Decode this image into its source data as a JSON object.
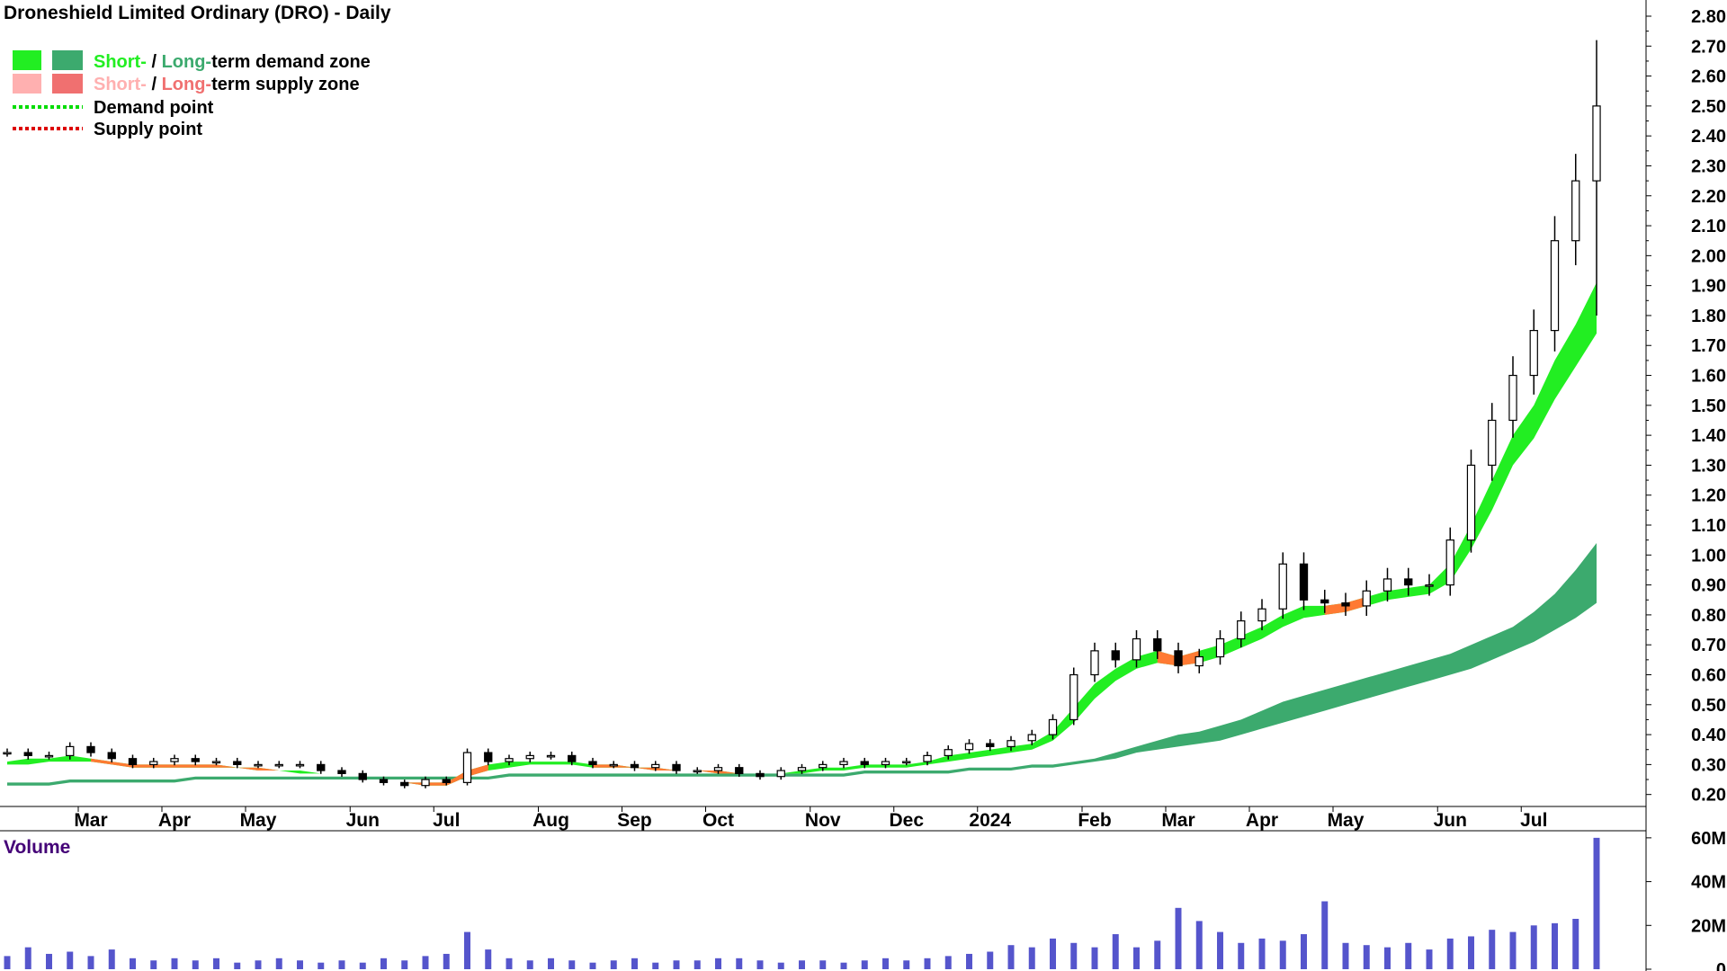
{
  "title": "Droneshield Limited Ordinary (DRO) - Daily",
  "legend": {
    "demand_zone": {
      "short": "Short-",
      "sep": " / ",
      "long": "Long-",
      "rest": "term demand zone"
    },
    "supply_zone": {
      "short": "Short-",
      "sep": " / ",
      "long": "Long-",
      "rest": "term supply zone"
    },
    "demand_point": "Demand point",
    "supply_point": "Supply point"
  },
  "colors": {
    "short_demand": "#22ee22",
    "long_demand": "#3caa6e",
    "short_supply": "#ffb0b0",
    "long_supply": "#f07070",
    "orange_band": "#ff7a33",
    "demand_point": "#00dd00",
    "supply_point": "#dd0000",
    "volume_bar": "#5555cc",
    "volume_label": "#440077",
    "candle": "#000000"
  },
  "volume_label": "Volume",
  "chart_data": [
    {
      "type": "candlestick",
      "title": "Droneshield Limited Ordinary (DRO) - Daily",
      "y_axis": {
        "ticks": [
          "0.20",
          "0.30",
          "0.40",
          "0.50",
          "0.60",
          "0.70",
          "0.80",
          "0.90",
          "1.00",
          "1.10",
          "1.20",
          "1.30",
          "1.40",
          "1.50",
          "1.60",
          "1.70",
          "1.80",
          "1.90",
          "2.00",
          "2.10",
          "2.20",
          "2.30",
          "2.40",
          "2.50",
          "2.60",
          "2.70",
          "2.80"
        ],
        "range": [
          0.16,
          2.83
        ],
        "side": "right"
      },
      "x_axis": {
        "labels": [
          "Mar",
          "Apr",
          "May",
          "Jun",
          "Jul",
          "Aug",
          "Sep",
          "Oct",
          "Nov",
          "Dec",
          "2024",
          "Feb",
          "Mar",
          "Apr",
          "May",
          "Jun",
          "Jul"
        ],
        "label_week_index": [
          4,
          8,
          12,
          17,
          21,
          26,
          30,
          34,
          39,
          43,
          47,
          52,
          56,
          60,
          64,
          69,
          73
        ]
      },
      "weekly_close": [
        0.34,
        0.33,
        0.33,
        0.36,
        0.34,
        0.32,
        0.3,
        0.31,
        0.32,
        0.31,
        0.31,
        0.3,
        0.3,
        0.3,
        0.3,
        0.28,
        0.27,
        0.25,
        0.24,
        0.23,
        0.25,
        0.24,
        0.34,
        0.31,
        0.32,
        0.33,
        0.33,
        0.31,
        0.3,
        0.3,
        0.29,
        0.3,
        0.28,
        0.28,
        0.29,
        0.27,
        0.26,
        0.28,
        0.29,
        0.3,
        0.31,
        0.3,
        0.31,
        0.31,
        0.33,
        0.35,
        0.37,
        0.36,
        0.38,
        0.4,
        0.45,
        0.6,
        0.68,
        0.65,
        0.72,
        0.68,
        0.63,
        0.66,
        0.72,
        0.78,
        0.82,
        0.97,
        0.85,
        0.84,
        0.83,
        0.88,
        0.92,
        0.9,
        0.9,
        1.05,
        1.3,
        1.45,
        1.6,
        1.75,
        2.05,
        2.25,
        2.5
      ],
      "last_week_high": 2.72,
      "last_week_low": 1.8,
      "short_demand_zone": {
        "upper": [
          0.31,
          0.32,
          0.32,
          0.33,
          0.32,
          0.31,
          0.3,
          0.3,
          0.3,
          0.3,
          0.3,
          0.29,
          0.29,
          0.28,
          0.28,
          0.27,
          0.26,
          0.25,
          0.24,
          0.24,
          0.24,
          0.24,
          0.28,
          0.3,
          0.31,
          0.31,
          0.31,
          0.31,
          0.3,
          0.3,
          0.29,
          0.29,
          0.28,
          0.28,
          0.28,
          0.27,
          0.27,
          0.27,
          0.28,
          0.29,
          0.29,
          0.3,
          0.3,
          0.3,
          0.31,
          0.33,
          0.34,
          0.35,
          0.36,
          0.37,
          0.41,
          0.49,
          0.57,
          0.62,
          0.66,
          0.68,
          0.66,
          0.68,
          0.7,
          0.73,
          0.76,
          0.8,
          0.83,
          0.83,
          0.84,
          0.86,
          0.88,
          0.89,
          0.9,
          0.97,
          1.1,
          1.25,
          1.4,
          1.5,
          1.65,
          1.77,
          1.91
        ],
        "lower": [
          0.3,
          0.3,
          0.31,
          0.31,
          0.31,
          0.3,
          0.29,
          0.29,
          0.29,
          0.29,
          0.29,
          0.29,
          0.28,
          0.28,
          0.27,
          0.27,
          0.26,
          0.25,
          0.24,
          0.24,
          0.23,
          0.23,
          0.26,
          0.28,
          0.29,
          0.3,
          0.3,
          0.3,
          0.29,
          0.29,
          0.29,
          0.28,
          0.28,
          0.28,
          0.27,
          0.27,
          0.27,
          0.27,
          0.27,
          0.28,
          0.28,
          0.29,
          0.29,
          0.29,
          0.3,
          0.31,
          0.32,
          0.33,
          0.34,
          0.35,
          0.38,
          0.44,
          0.52,
          0.58,
          0.62,
          0.64,
          0.63,
          0.64,
          0.66,
          0.69,
          0.72,
          0.76,
          0.79,
          0.8,
          0.81,
          0.83,
          0.85,
          0.86,
          0.87,
          0.91,
          1.02,
          1.15,
          1.3,
          1.39,
          1.52,
          1.63,
          1.74
        ]
      },
      "long_demand_zone": {
        "upper": [
          0.24,
          0.24,
          0.24,
          0.25,
          0.25,
          0.25,
          0.25,
          0.25,
          0.25,
          0.26,
          0.26,
          0.26,
          0.26,
          0.26,
          0.26,
          0.26,
          0.26,
          0.26,
          0.26,
          0.26,
          0.26,
          0.26,
          0.26,
          0.26,
          0.27,
          0.27,
          0.27,
          0.27,
          0.27,
          0.27,
          0.27,
          0.27,
          0.27,
          0.27,
          0.27,
          0.27,
          0.27,
          0.27,
          0.27,
          0.27,
          0.27,
          0.28,
          0.28,
          0.28,
          0.28,
          0.28,
          0.29,
          0.29,
          0.29,
          0.3,
          0.3,
          0.31,
          0.32,
          0.34,
          0.36,
          0.38,
          0.4,
          0.41,
          0.43,
          0.45,
          0.48,
          0.51,
          0.53,
          0.55,
          0.57,
          0.59,
          0.61,
          0.63,
          0.65,
          0.67,
          0.7,
          0.73,
          0.76,
          0.81,
          0.87,
          0.95,
          1.04
        ],
        "lower": [
          0.23,
          0.23,
          0.23,
          0.24,
          0.24,
          0.24,
          0.24,
          0.24,
          0.24,
          0.25,
          0.25,
          0.25,
          0.25,
          0.25,
          0.25,
          0.25,
          0.25,
          0.25,
          0.25,
          0.25,
          0.25,
          0.25,
          0.25,
          0.25,
          0.26,
          0.26,
          0.26,
          0.26,
          0.26,
          0.26,
          0.26,
          0.26,
          0.26,
          0.26,
          0.26,
          0.26,
          0.26,
          0.26,
          0.26,
          0.26,
          0.26,
          0.27,
          0.27,
          0.27,
          0.27,
          0.27,
          0.28,
          0.28,
          0.28,
          0.29,
          0.29,
          0.3,
          0.31,
          0.32,
          0.34,
          0.35,
          0.36,
          0.37,
          0.38,
          0.4,
          0.42,
          0.44,
          0.46,
          0.48,
          0.5,
          0.52,
          0.54,
          0.56,
          0.58,
          0.6,
          0.62,
          0.65,
          0.68,
          0.71,
          0.75,
          0.79,
          0.84
        ]
      },
      "short_supply_zone_weeks": [
        [
          4,
          13
        ],
        [
          15,
          23
        ],
        [
          28,
          37
        ],
        [
          55,
          57
        ],
        [
          63,
          65
        ]
      ]
    },
    {
      "type": "bar",
      "title": "Volume",
      "y_axis": {
        "ticks": [
          "0",
          "20M",
          "40M",
          "60M"
        ],
        "range": [
          0,
          62
        ]
      },
      "weekly_volume_millions": [
        6,
        10,
        7,
        8,
        6,
        9,
        5,
        4,
        5,
        4,
        5,
        3,
        4,
        5,
        4,
        3,
        4,
        3,
        5,
        4,
        6,
        7,
        17,
        9,
        5,
        4,
        5,
        4,
        3,
        4,
        5,
        3,
        4,
        4,
        5,
        5,
        4,
        3,
        4,
        4,
        3,
        4,
        5,
        4,
        5,
        6,
        7,
        8,
        11,
        10,
        14,
        12,
        10,
        16,
        10,
        13,
        28,
        22,
        17,
        12,
        14,
        13,
        16,
        31,
        12,
        11,
        10,
        12,
        9,
        14,
        15,
        18,
        17,
        20,
        21,
        23,
        60
      ]
    }
  ]
}
